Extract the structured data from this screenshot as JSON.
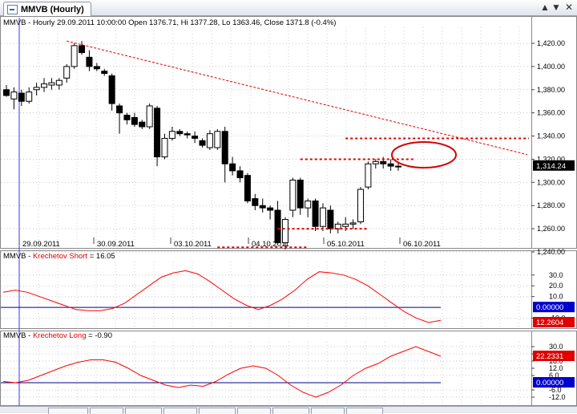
{
  "window": {
    "tab_title": "MMVB (Hourly)",
    "up_arrow": "▲",
    "down_arrow": "▼",
    "close_glyph": "✕"
  },
  "price_panel": {
    "header": "MMVB - Hourly 29.09.2011 10:00:00 Open 1376.71, Hi 1377.28, Lo 1363.46, Close 1371.8 (-0.4%)",
    "y_ticks": [
      "1,420.00",
      "1,400.00",
      "1,380.00",
      "1,360.00",
      "1,340.00",
      "1,320.00",
      "1,300.00",
      "1,280.00",
      "1,260.00",
      "1,240.00"
    ],
    "last_price_label": "1,314.24",
    "dates": [
      "29.09.2011",
      "30.09.2011",
      "03.10.2011",
      "04.10.2011",
      "05.10.2011",
      "06.10.2011"
    ]
  },
  "short_panel": {
    "header_prefix": "MMVB - ",
    "header_name": "Krechetov Short",
    "header_value": " = 16.05",
    "y_ticks": [
      "30.0",
      "20.0",
      "10.0",
      "-10.0"
    ],
    "zero_label": "0.00000",
    "value_label": "12.2604"
  },
  "long_panel": {
    "header_prefix": "MMVB - ",
    "header_name": "Krechetov Long",
    "header_value": " = -0.90",
    "y_ticks": [
      "30.0",
      "24.0",
      "18.0",
      "12.0",
      "6.0",
      "-6.0",
      "-12.0"
    ],
    "value_label": "22.2331",
    "zero_label": "0.00000"
  },
  "chart_data": [
    {
      "type": "candlestick",
      "title": "MMVB - Hourly",
      "x_labels": [
        "29.09.2011",
        "30.09.2011",
        "03.10.2011",
        "04.10.2011",
        "05.10.2011",
        "06.10.2011"
      ],
      "ylim": [
        1235,
        1430
      ],
      "candles": [
        {
          "o": 1380,
          "h": 1384,
          "l": 1374,
          "c": 1375
        },
        {
          "o": 1372,
          "h": 1382,
          "l": 1363,
          "c": 1378
        },
        {
          "o": 1377,
          "h": 1380,
          "l": 1366,
          "c": 1370
        },
        {
          "o": 1370,
          "h": 1382,
          "l": 1368,
          "c": 1378
        },
        {
          "o": 1380,
          "h": 1386,
          "l": 1375,
          "c": 1382
        },
        {
          "o": 1382,
          "h": 1390,
          "l": 1378,
          "c": 1385
        },
        {
          "o": 1384,
          "h": 1390,
          "l": 1380,
          "c": 1386
        },
        {
          "o": 1384,
          "h": 1390,
          "l": 1380,
          "c": 1388
        },
        {
          "o": 1390,
          "h": 1402,
          "l": 1386,
          "c": 1400
        },
        {
          "o": 1400,
          "h": 1420,
          "l": 1398,
          "c": 1418
        },
        {
          "o": 1418,
          "h": 1422,
          "l": 1410,
          "c": 1412
        },
        {
          "o": 1408,
          "h": 1414,
          "l": 1396,
          "c": 1400
        },
        {
          "o": 1400,
          "h": 1403,
          "l": 1396,
          "c": 1398
        },
        {
          "o": 1396,
          "h": 1398,
          "l": 1392,
          "c": 1394
        },
        {
          "o": 1392,
          "h": 1394,
          "l": 1362,
          "c": 1368
        },
        {
          "o": 1366,
          "h": 1368,
          "l": 1342,
          "c": 1360
        },
        {
          "o": 1358,
          "h": 1360,
          "l": 1350,
          "c": 1354
        },
        {
          "o": 1356,
          "h": 1360,
          "l": 1348,
          "c": 1350
        },
        {
          "o": 1352,
          "h": 1354,
          "l": 1346,
          "c": 1348
        },
        {
          "o": 1348,
          "h": 1368,
          "l": 1346,
          "c": 1366
        },
        {
          "o": 1364,
          "h": 1366,
          "l": 1314,
          "c": 1322
        },
        {
          "o": 1322,
          "h": 1342,
          "l": 1320,
          "c": 1338
        },
        {
          "o": 1338,
          "h": 1348,
          "l": 1336,
          "c": 1344
        },
        {
          "o": 1344,
          "h": 1346,
          "l": 1340,
          "c": 1342
        },
        {
          "o": 1342,
          "h": 1344,
          "l": 1338,
          "c": 1341
        },
        {
          "o": 1340,
          "h": 1344,
          "l": 1334,
          "c": 1338
        },
        {
          "o": 1336,
          "h": 1338,
          "l": 1330,
          "c": 1332
        },
        {
          "o": 1330,
          "h": 1345,
          "l": 1328,
          "c": 1342
        },
        {
          "o": 1330,
          "h": 1346,
          "l": 1328,
          "c": 1344
        },
        {
          "o": 1344,
          "h": 1348,
          "l": 1300,
          "c": 1316
        },
        {
          "o": 1316,
          "h": 1322,
          "l": 1306,
          "c": 1310
        },
        {
          "o": 1310,
          "h": 1314,
          "l": 1300,
          "c": 1304
        },
        {
          "o": 1306,
          "h": 1308,
          "l": 1282,
          "c": 1284
        },
        {
          "o": 1286,
          "h": 1290,
          "l": 1276,
          "c": 1280
        },
        {
          "o": 1280,
          "h": 1286,
          "l": 1274,
          "c": 1278
        },
        {
          "o": 1278,
          "h": 1280,
          "l": 1268,
          "c": 1276
        },
        {
          "o": 1276,
          "h": 1284,
          "l": 1246,
          "c": 1248
        },
        {
          "o": 1248,
          "h": 1270,
          "l": 1242,
          "c": 1268
        },
        {
          "o": 1276,
          "h": 1304,
          "l": 1270,
          "c": 1302
        },
        {
          "o": 1302,
          "h": 1304,
          "l": 1272,
          "c": 1278
        },
        {
          "o": 1278,
          "h": 1286,
          "l": 1270,
          "c": 1284
        },
        {
          "o": 1284,
          "h": 1286,
          "l": 1258,
          "c": 1262
        },
        {
          "o": 1262,
          "h": 1282,
          "l": 1258,
          "c": 1278
        },
        {
          "o": 1276,
          "h": 1280,
          "l": 1256,
          "c": 1260
        },
        {
          "o": 1260,
          "h": 1266,
          "l": 1256,
          "c": 1264
        },
        {
          "o": 1262,
          "h": 1270,
          "l": 1258,
          "c": 1264
        },
        {
          "o": 1264,
          "h": 1268,
          "l": 1260,
          "c": 1265
        },
        {
          "o": 1266,
          "h": 1296,
          "l": 1264,
          "c": 1294
        },
        {
          "o": 1296,
          "h": 1318,
          "l": 1294,
          "c": 1316
        },
        {
          "o": 1316,
          "h": 1320,
          "l": 1312,
          "c": 1318
        },
        {
          "o": 1318,
          "h": 1322,
          "l": 1312,
          "c": 1316
        },
        {
          "o": 1316,
          "h": 1320,
          "l": 1310,
          "c": 1314
        },
        {
          "o": 1314,
          "h": 1318,
          "l": 1310,
          "c": 1314
        }
      ],
      "annotations": [
        {
          "kind": "trendline",
          "from": [
            8,
            1422
          ],
          "to": [
            74,
            1324
          ]
        },
        {
          "kind": "level",
          "y": 1338,
          "x": [
            45,
            73
          ]
        },
        {
          "kind": "level",
          "y": 1320,
          "x": [
            39,
            54
          ]
        },
        {
          "kind": "level",
          "y": 1260,
          "x": [
            36,
            48
          ]
        },
        {
          "kind": "level",
          "y": 1244,
          "x": [
            28,
            40
          ]
        }
      ],
      "colors": {
        "up": "#ffffff",
        "down": "#000000",
        "annotation": "#e00000",
        "price_label": "#000000"
      }
    },
    {
      "type": "line",
      "title": "Krechetov Short",
      "ylim": [
        -14,
        38
      ],
      "series": [
        {
          "name": "Krechetov Short",
          "values": [
            14,
            16,
            14,
            10,
            6,
            2,
            -2,
            -3,
            -3,
            -1,
            4,
            12,
            20,
            28,
            32,
            34,
            31,
            24,
            16,
            8,
            2,
            -2,
            2,
            8,
            16,
            26,
            33,
            32,
            30,
            26,
            20,
            12,
            4,
            -4,
            -10,
            -14,
            -12
          ]
        }
      ],
      "zero_line": 0,
      "colors": {
        "line": "#ff0000",
        "zero": "#00008b"
      }
    },
    {
      "type": "line",
      "title": "Krechetov Long",
      "ylim": [
        -14,
        34
      ],
      "series": [
        {
          "name": "Krechetov Long",
          "values": [
            1,
            0,
            2,
            6,
            10,
            14,
            17,
            19,
            19,
            17,
            12,
            6,
            2,
            -2,
            -4,
            -2,
            -3,
            1,
            7,
            12,
            14,
            12,
            6,
            -2,
            -8,
            -12,
            -8,
            -2,
            6,
            12,
            16,
            22,
            26,
            30,
            26,
            22
          ]
        }
      ],
      "zero_line": 0,
      "colors": {
        "line": "#ff0000",
        "zero": "#00008b"
      }
    }
  ]
}
